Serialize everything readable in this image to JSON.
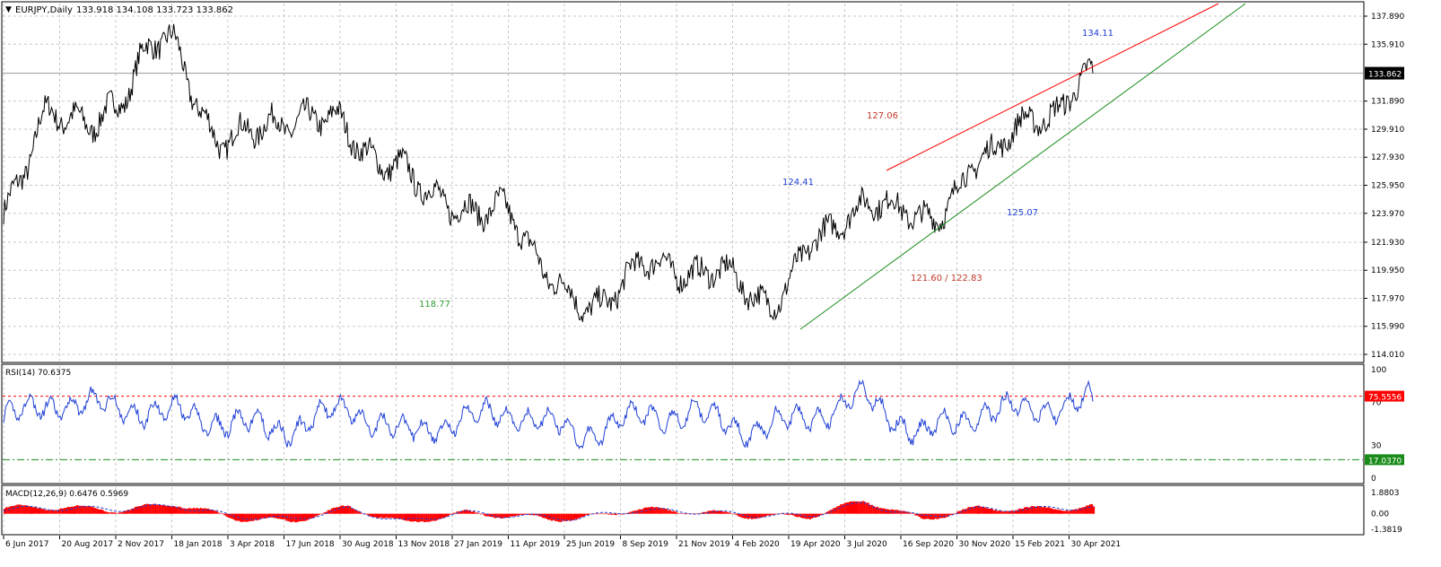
{
  "header": {
    "symbol_timeframe": "EURJPY,Daily",
    "ohlc": "133.918 134.108 133.723 133.862"
  },
  "price_axis": {
    "ticks": [
      "137.890",
      "135.910",
      "133.862",
      "131.890",
      "129.910",
      "127.930",
      "125.950",
      "123.970",
      "121.930",
      "119.950",
      "117.970",
      "115.990",
      "114.010"
    ],
    "current_price": "133.862",
    "range": [
      114.01,
      137.89
    ]
  },
  "date_axis": {
    "labels": [
      "6 Jun 2017",
      "20 Aug 2017",
      "2 Nov 2017",
      "18 Jan 2018",
      "3 Apr 2018",
      "17 Jun 2018",
      "30 Aug 2018",
      "13 Nov 2018",
      "27 Jan 2019",
      "11 Apr 2019",
      "25 Jun 2019",
      "8 Sep 2019",
      "21 Nov 2019",
      "4 Feb 2020",
      "19 Apr 2020",
      "3 Jul 2020",
      "16 Sep 2020",
      "30 Nov 2020",
      "15 Feb 2021",
      "30 Apr 2021"
    ]
  },
  "annotations": [
    {
      "text": "134.11",
      "color": "#1f3fd6"
    },
    {
      "text": "127.06",
      "color": "#c0392b"
    },
    {
      "text": "124.41",
      "color": "#1f3fd6"
    },
    {
      "text": "125.07",
      "color": "#1f3fd6"
    },
    {
      "text": "121.60 / 122.83",
      "color": "#c0392b"
    },
    {
      "text": "118.77",
      "color": "#2e9e2e"
    }
  ],
  "rsi": {
    "label": "RSI(14) 70.6375",
    "ticks": [
      "100",
      "70",
      "30",
      "0"
    ],
    "upper_level": "75.5556",
    "lower_level": "17.0370"
  },
  "macd": {
    "label": "MACD(12,26,9) 0.6476 0.5969",
    "ticks": [
      "1.8803",
      "0.00",
      "-1.3819"
    ]
  },
  "colors": {
    "price": "#000000",
    "resistance": "#ff0000",
    "support": "#1a8c1a",
    "rsi_line": "#1f3fd6",
    "macd_hist": "#ff0000",
    "macd_signal": "#1f3fd6",
    "grid": "#c8c8c8"
  },
  "chart_data": [
    {
      "type": "line",
      "title": "EURJPY,Daily",
      "ylim": [
        114.01,
        137.89
      ],
      "x": [
        "6 Jun 2017",
        "20 Aug 2017",
        "2 Nov 2017",
        "18 Jan 2018",
        "3 Apr 2018",
        "17 Jun 2018",
        "30 Aug 2018",
        "13 Nov 2018",
        "27 Jan 2019",
        "11 Apr 2019",
        "25 Jun 2019",
        "8 Sep 2019",
        "21 Nov 2019",
        "4 Feb 2020",
        "19 Apr 2020",
        "3 Jul 2020",
        "16 Sep 2020",
        "30 Nov 2020",
        "15 Feb 2021",
        "30 Apr 2021"
      ],
      "series": [
        {
          "values": [
            124.0,
            130.8,
            131.8,
            135.6,
            130.0,
            129.2,
            131.8,
            126.6,
            125.6,
            124.0,
            119.8,
            117.6,
            120.2,
            120.5,
            116.8,
            123.2,
            124.0,
            124.2,
            127.4,
            131.0
          ]
        }
      ],
      "end_value": 133.862,
      "trendlines": [
        {
          "color": "#ff0000",
          "values_at_start": 127.06,
          "values_at_end": 134.11
        },
        {
          "color": "#1a8c1a",
          "from": 114.5,
          "through": 125.07
        }
      ]
    },
    {
      "type": "line",
      "title": "RSI(14)",
      "ylim": [
        0,
        100
      ],
      "x": [
        "6 Jun 2017",
        "20 Aug 2017",
        "2 Nov 2017",
        "18 Jan 2018",
        "3 Apr 2018",
        "17 Jun 2018",
        "30 Aug 2018",
        "13 Nov 2018",
        "27 Jan 2019",
        "11 Apr 2019",
        "25 Jun 2019",
        "8 Sep 2019",
        "21 Nov 2019",
        "4 Feb 2020",
        "19 Apr 2020",
        "3 Jul 2020",
        "16 Sep 2020",
        "30 Nov 2020",
        "15 Feb 2021",
        "30 Apr 2021"
      ],
      "series": [
        {
          "values": [
            55,
            70,
            65,
            60,
            50,
            45,
            65,
            40,
            55,
            60,
            40,
            55,
            60,
            45,
            55,
            75,
            40,
            60,
            65,
            70.6375
          ]
        }
      ],
      "levels": [
        75.5556,
        17.037
      ]
    },
    {
      "type": "bar",
      "title": "MACD(12,26,9)",
      "ylim": [
        -1.3819,
        1.8803
      ],
      "x": [
        "6 Jun 2017",
        "20 Aug 2017",
        "2 Nov 2017",
        "18 Jan 2018",
        "3 Apr 2018",
        "17 Jun 2018",
        "30 Aug 2018",
        "13 Nov 2018",
        "27 Jan 2019",
        "11 Apr 2019",
        "25 Jun 2019",
        "8 Sep 2019",
        "21 Nov 2019",
        "4 Feb 2020",
        "19 Apr 2020",
        "3 Jul 2020",
        "16 Sep 2020",
        "30 Nov 2020",
        "15 Feb 2021",
        "30 Apr 2021"
      ],
      "series": [
        {
          "values": [
            0.5,
            0.6,
            0.3,
            0.9,
            -0.4,
            -0.7,
            0.6,
            -0.9,
            0.1,
            -0.3,
            -0.5,
            0.4,
            0.2,
            -0.2,
            -0.3,
            1.2,
            -0.5,
            0.5,
            0.4,
            0.6476
          ]
        },
        {
          "values": [
            0.4,
            0.5,
            0.4,
            0.7,
            -0.2,
            -0.5,
            0.4,
            -0.7,
            0.1,
            -0.2,
            -0.4,
            0.3,
            0.2,
            -0.1,
            -0.2,
            0.9,
            -0.3,
            0.4,
            0.4,
            0.5969
          ]
        }
      ]
    }
  ]
}
